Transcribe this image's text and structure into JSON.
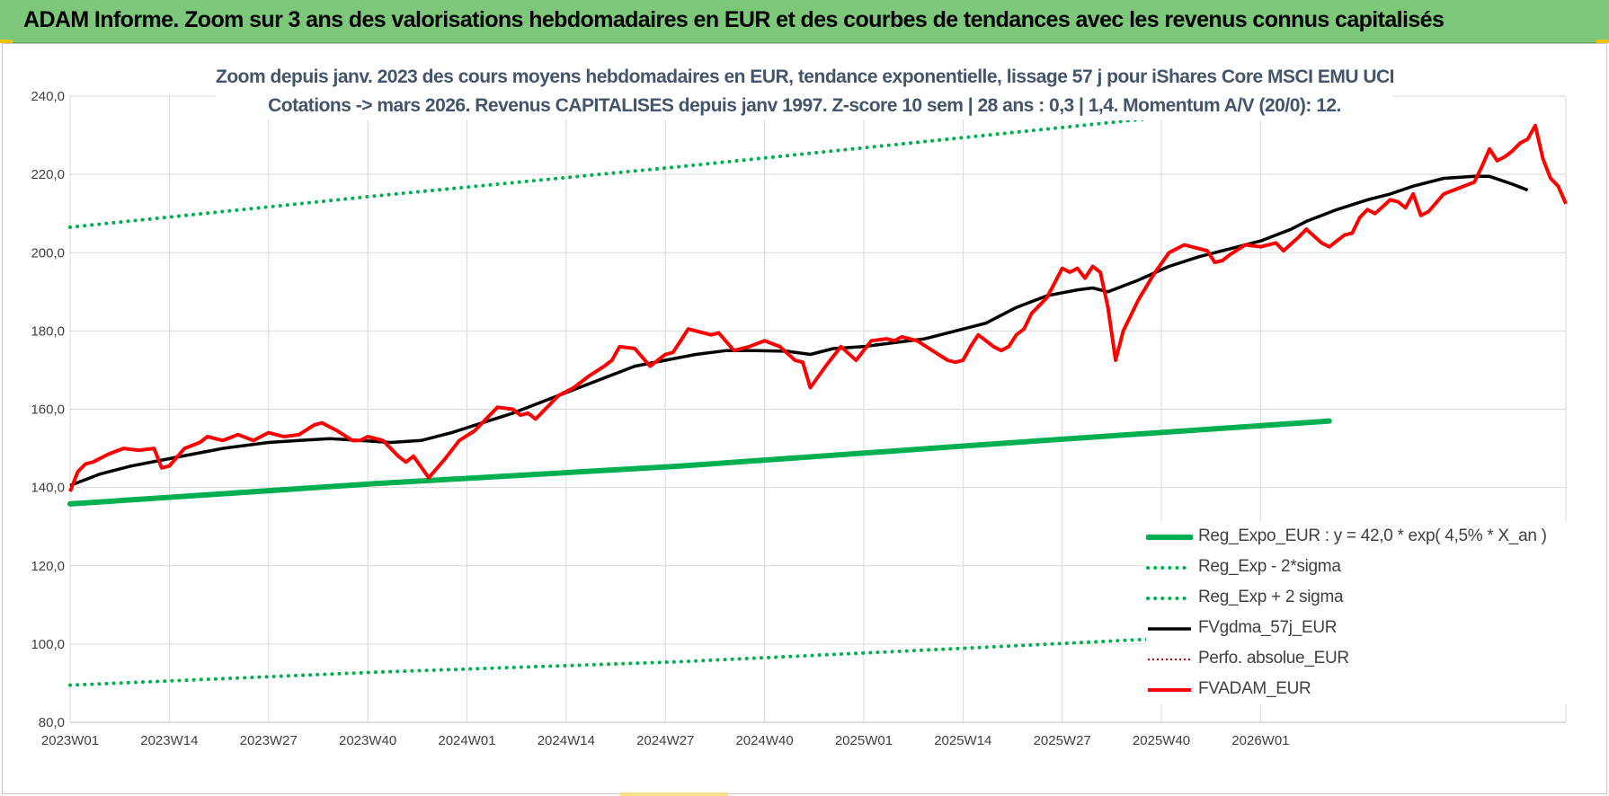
{
  "header": {
    "title": "ADAM Informe. Zoom sur 3 ans des valorisations hebdomadaires en EUR et des courbes de tendances avec les revenus connus capitalisés"
  },
  "colors": {
    "banner": "#7cc77a",
    "subtitle": "#44546a",
    "trend_green": "#00b050",
    "fair_value_black": "#000000",
    "price_red": "#ff0000",
    "perf_dotted_red": "#c00000",
    "grid": "#d9d9d9"
  },
  "chart_data": {
    "type": "line",
    "title_lines": [
      "Zoom depuis janv. 2023 des cours moyens hebdomadaires en EUR, tendance exponentielle, lissage 57 j pour iShares Core MSCI EMU UCI",
      "Cotations -> mars 2026. Revenus CAPITALISES depuis janv 1997. Z-score 10 sem | 28 ans : 0,3 | 1,4. Momentum A/V (20/0): 12."
    ],
    "x_tick_labels": [
      "2023W01",
      "2023W14",
      "2023W27",
      "2023W40",
      "2024W01",
      "2024W14",
      "2024W27",
      "2024W40",
      "2025W01",
      "2025W14",
      "2025W27",
      "2025W40",
      "2026W01"
    ],
    "x_tick_step_weeks": 13,
    "n_weeks": 166,
    "ylim": [
      80,
      240
    ],
    "y_tick_step": 20,
    "y_tick_labels": [
      "80,0",
      "100,0",
      "120,0",
      "140,0",
      "160,0",
      "180,0",
      "200,0",
      "220,0",
      "240,0"
    ],
    "grid": true,
    "legend_position": "bottom-right",
    "legend": [
      {
        "name": "Reg_Expo_EUR : y = 42,0 * exp( 4,5% *  X_an )",
        "style": "thick-solid",
        "color": "#00b050"
      },
      {
        "name": "Reg_Exp - 2*sigma",
        "style": "dotted",
        "color": "#00b050"
      },
      {
        "name": "Reg_Exp + 2 sigma",
        "style": "dotted",
        "color": "#00b050"
      },
      {
        "name": "FVgdma_57j_EUR",
        "style": "solid",
        "color": "#000000"
      },
      {
        "name": "Perfo. absolue_EUR",
        "style": "dotted-thin",
        "color": "#c00000"
      },
      {
        "name": "FVADAM_EUR",
        "style": "solid",
        "color": "#ff0000"
      }
    ],
    "series": [
      {
        "name": "Reg_Expo_EUR : y = 42,0 * exp( 4,5% *  X_an )",
        "style": "thick-solid",
        "color": "#00b050",
        "points": [
          [
            0,
            135.8
          ],
          [
            40,
            141.0
          ],
          [
            80,
            145.5
          ],
          [
            120,
            151.0
          ],
          [
            165,
            157.0
          ]
        ]
      },
      {
        "name": "Reg_Exp - 2*sigma",
        "style": "dotted",
        "color": "#00b050",
        "points": [
          [
            0,
            89.5
          ],
          [
            40,
            92.8
          ],
          [
            80,
            95.5
          ],
          [
            120,
            99.2
          ],
          [
            165,
            103.5
          ]
        ]
      },
      {
        "name": "Reg_Exp + 2 sigma",
        "style": "dotted",
        "color": "#00b050",
        "points": [
          [
            0,
            206.5
          ],
          [
            40,
            214.5
          ],
          [
            80,
            222.0
          ],
          [
            120,
            230.0
          ],
          [
            165,
            239.0
          ]
        ]
      },
      {
        "name": "FVgdma_57j_EUR",
        "style": "solid",
        "color": "#000000",
        "points": [
          [
            0,
            140.5
          ],
          [
            4,
            143.5
          ],
          [
            8,
            145.5
          ],
          [
            12,
            147.0
          ],
          [
            16,
            148.5
          ],
          [
            20,
            150.0
          ],
          [
            26,
            151.5
          ],
          [
            30,
            152.0
          ],
          [
            34,
            152.5
          ],
          [
            38,
            152.0
          ],
          [
            42,
            151.5
          ],
          [
            46,
            152.0
          ],
          [
            50,
            154.0
          ],
          [
            54,
            156.5
          ],
          [
            58,
            159.0
          ],
          [
            62,
            162.0
          ],
          [
            66,
            165.0
          ],
          [
            70,
            168.0
          ],
          [
            74,
            171.0
          ],
          [
            78,
            172.5
          ],
          [
            82,
            174.0
          ],
          [
            86,
            175.0
          ],
          [
            90,
            175.0
          ],
          [
            94,
            174.8
          ],
          [
            97,
            174.0
          ],
          [
            100,
            175.5
          ],
          [
            104,
            176.0
          ],
          [
            108,
            177.0
          ],
          [
            112,
            178.0
          ],
          [
            116,
            180.0
          ],
          [
            120,
            182.0
          ],
          [
            124,
            186.0
          ],
          [
            128,
            189.0
          ],
          [
            132,
            190.5
          ],
          [
            134,
            191.0
          ],
          [
            136,
            190.0
          ],
          [
            140,
            193.0
          ],
          [
            144,
            196.5
          ],
          [
            148,
            199.0
          ],
          [
            152,
            201.0
          ],
          [
            156,
            203.0
          ],
          [
            160,
            206.0
          ],
          [
            162,
            208.0
          ],
          [
            166,
            211.0
          ],
          [
            170,
            213.5
          ],
          [
            173,
            215.0
          ],
          [
            176,
            217.0
          ],
          [
            180,
            219.0
          ],
          [
            184,
            219.5
          ],
          [
            186,
            219.5
          ],
          [
            189,
            217.5
          ],
          [
            191,
            216.0
          ]
        ]
      },
      {
        "name": "FVADAM_EUR",
        "style": "solid",
        "color": "#ff0000",
        "points": [
          [
            0,
            139.0
          ],
          [
            1,
            144.0
          ],
          [
            2,
            146.0
          ],
          [
            3,
            146.5
          ],
          [
            5,
            148.5
          ],
          [
            7,
            150.0
          ],
          [
            9,
            149.5
          ],
          [
            11,
            150.0
          ],
          [
            12,
            145.0
          ],
          [
            13,
            145.5
          ],
          [
            15,
            150.0
          ],
          [
            17,
            151.5
          ],
          [
            18,
            153.0
          ],
          [
            20,
            152.0
          ],
          [
            22,
            153.5
          ],
          [
            24,
            152.0
          ],
          [
            26,
            154.0
          ],
          [
            28,
            153.0
          ],
          [
            30,
            153.5
          ],
          [
            32,
            156.0
          ],
          [
            33,
            156.5
          ],
          [
            35,
            154.5
          ],
          [
            37,
            152.0
          ],
          [
            38,
            152.0
          ],
          [
            39,
            153.0
          ],
          [
            41,
            152.0
          ],
          [
            43,
            148.0
          ],
          [
            44,
            146.5
          ],
          [
            45,
            148.0
          ],
          [
            47,
            142.5
          ],
          [
            49,
            147.0
          ],
          [
            51,
            152.0
          ],
          [
            53,
            154.5
          ],
          [
            56,
            160.5
          ],
          [
            58,
            160.0
          ],
          [
            59,
            158.5
          ],
          [
            60,
            159.0
          ],
          [
            61,
            157.5
          ],
          [
            64,
            163.5
          ],
          [
            66,
            165.5
          ],
          [
            68,
            168.5
          ],
          [
            70,
            171.0
          ],
          [
            71,
            172.5
          ],
          [
            72,
            176.0
          ],
          [
            74,
            175.5
          ],
          [
            76,
            171.0
          ],
          [
            78,
            174.0
          ],
          [
            79,
            174.5
          ],
          [
            81,
            180.5
          ],
          [
            83,
            179.5
          ],
          [
            84,
            179.0
          ],
          [
            85,
            179.5
          ],
          [
            87,
            175.0
          ],
          [
            89,
            176.0
          ],
          [
            91,
            177.5
          ],
          [
            93,
            176.0
          ],
          [
            95,
            172.5
          ],
          [
            96,
            172.0
          ],
          [
            97,
            165.5
          ],
          [
            99,
            171.0
          ],
          [
            101,
            176.0
          ],
          [
            103,
            172.5
          ],
          [
            105,
            177.5
          ],
          [
            107,
            178.0
          ],
          [
            108,
            177.5
          ],
          [
            109,
            178.5
          ],
          [
            111,
            177.5
          ],
          [
            113,
            175.0
          ],
          [
            115,
            172.5
          ],
          [
            116,
            172.0
          ],
          [
            117,
            172.5
          ],
          [
            118,
            176.0
          ],
          [
            119,
            179.0
          ],
          [
            121,
            176.0
          ],
          [
            122,
            175.0
          ],
          [
            123,
            176.0
          ],
          [
            124,
            179.0
          ],
          [
            125,
            180.5
          ],
          [
            126,
            184.5
          ],
          [
            128,
            188.5
          ],
          [
            130,
            196.0
          ],
          [
            131,
            195.0
          ],
          [
            132,
            196.0
          ],
          [
            133,
            193.5
          ],
          [
            134,
            196.5
          ],
          [
            135,
            195.0
          ],
          [
            136,
            186.0
          ],
          [
            137,
            172.5
          ],
          [
            138,
            180.0
          ],
          [
            140,
            188.0
          ],
          [
            142,
            194.5
          ],
          [
            144,
            200.0
          ],
          [
            146,
            202.0
          ],
          [
            148,
            201.0
          ],
          [
            149,
            200.5
          ],
          [
            150,
            197.5
          ],
          [
            151,
            198.0
          ],
          [
            152,
            199.5
          ],
          [
            154,
            202.0
          ],
          [
            156,
            201.5
          ],
          [
            158,
            202.5
          ],
          [
            159,
            200.5
          ],
          [
            161,
            204.0
          ],
          [
            162,
            206.0
          ],
          [
            164,
            202.5
          ],
          [
            165,
            201.5
          ],
          [
            167,
            204.5
          ],
          [
            168,
            205.0
          ],
          [
            169,
            209.0
          ],
          [
            170,
            211.0
          ],
          [
            171,
            210.0
          ],
          [
            173,
            213.5
          ],
          [
            174,
            213.0
          ],
          [
            175,
            211.5
          ],
          [
            176,
            215.0
          ],
          [
            177,
            209.5
          ],
          [
            178,
            210.5
          ],
          [
            180,
            215.0
          ],
          [
            182,
            216.5
          ],
          [
            184,
            218.0
          ],
          [
            185,
            222.0
          ],
          [
            186,
            226.5
          ],
          [
            187,
            223.5
          ],
          [
            188,
            224.5
          ],
          [
            189,
            226.0
          ],
          [
            190,
            228.0
          ],
          [
            191,
            229.0
          ],
          [
            192,
            232.5
          ],
          [
            193,
            224.0
          ],
          [
            194,
            219.0
          ],
          [
            195,
            217.0
          ],
          [
            196,
            212.5
          ]
        ]
      }
    ]
  }
}
